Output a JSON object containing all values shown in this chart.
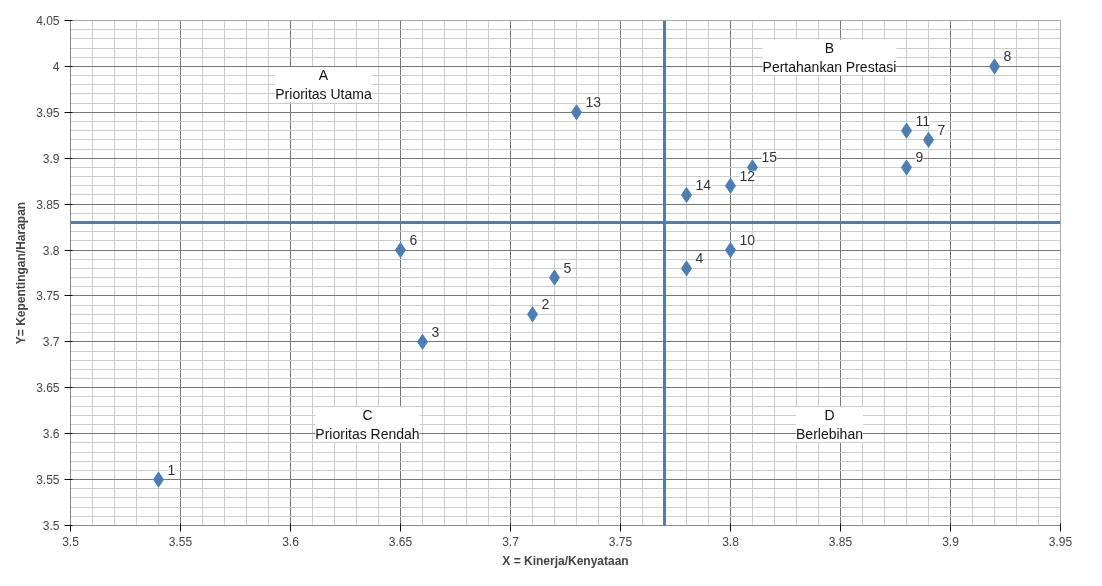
{
  "chart_data": {
    "type": "scatter",
    "xlabel": "X = Kinerja/Kenyataan",
    "ylabel": "Y= Kepentingan/Harapan",
    "x": [
      3.54,
      3.71,
      3.66,
      3.78,
      3.72,
      3.65,
      3.89,
      3.92,
      3.88,
      3.8,
      3.88,
      3.8,
      3.73,
      3.78,
      3.81
    ],
    "series": [
      {
        "color": "#4a7ebb",
        "values": [
          3.55,
          3.73,
          3.7,
          3.78,
          3.77,
          3.8,
          3.92,
          4.0,
          3.89,
          3.8,
          3.93,
          3.87,
          3.95,
          3.86,
          3.89
        ]
      }
    ],
    "xlim": [
      3.5,
      3.95
    ],
    "xticks": [
      3.5,
      3.55,
      3.6,
      3.65,
      3.7,
      3.75,
      3.8,
      3.85,
      3.9,
      3.95
    ],
    "ylim": [
      3.5,
      4.05
    ],
    "yticks": [
      3.5,
      3.55,
      3.6,
      3.65,
      3.7,
      3.75,
      3.8,
      3.85,
      3.9,
      3.95,
      4,
      4.05
    ],
    "ref_lines": [
      {
        "axis": "x",
        "value": 3.77,
        "color": "#4a7ebb"
      },
      {
        "axis": "y",
        "value": 3.83,
        "color": "#4a7ebb"
      }
    ],
    "annotations": [
      "A\nPrioritas Utama",
      "B\nPertahankan Prestasi",
      "C\nPrioritas Rendah",
      "D\nBerlebihan",
      {
        "text": "1",
        "x": 3.54,
        "y": 3.55
      },
      {
        "text": "2",
        "x": 3.71,
        "y": 3.73
      },
      {
        "text": "3",
        "x": 3.66,
        "y": 3.7
      },
      {
        "text": "4",
        "x": 3.78,
        "y": 3.78
      },
      {
        "text": "5",
        "x": 3.72,
        "y": 3.77
      },
      {
        "text": "6",
        "x": 3.65,
        "y": 3.8
      },
      {
        "text": "7",
        "x": 3.89,
        "y": 3.92
      },
      {
        "text": "8",
        "x": 3.92,
        "y": 4.0
      },
      {
        "text": "9",
        "x": 3.88,
        "y": 3.89
      },
      {
        "text": "10",
        "x": 3.8,
        "y": 3.8
      },
      {
        "text": "11",
        "x": 3.88,
        "y": 3.93
      },
      {
        "text": "12",
        "x": 3.8,
        "y": 3.87
      },
      {
        "text": "13",
        "x": 3.73,
        "y": 3.95
      },
      {
        "text": "14",
        "x": 3.78,
        "y": 3.86
      },
      {
        "text": "15",
        "x": 3.81,
        "y": 3.89
      }
    ],
    "grid": true,
    "marker": "diamond"
  }
}
